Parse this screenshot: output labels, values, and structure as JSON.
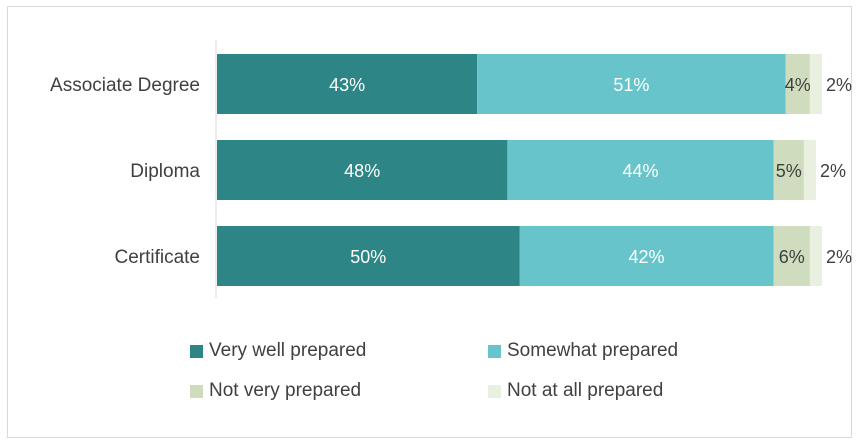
{
  "chart_data": {
    "type": "bar",
    "orientation": "horizontal",
    "stacked": true,
    "categories": [
      "Associate Degree",
      "Diploma",
      "Certificate"
    ],
    "series": [
      {
        "name": "Very well prepared",
        "values": [
          43,
          48,
          50
        ],
        "labels": [
          "43%",
          "48%",
          "50%"
        ],
        "color": "#2e8585"
      },
      {
        "name": "Somewhat prepared",
        "values": [
          51,
          44,
          42
        ],
        "labels": [
          "51%",
          "44%",
          "42%"
        ],
        "color": "#66c4ca"
      },
      {
        "name": "Not very prepared",
        "values": [
          4,
          5,
          6
        ],
        "labels": [
          "4%",
          "5%",
          "6%"
        ],
        "color": "#cfdcbd"
      },
      {
        "name": "Not at all prepared",
        "values": [
          2,
          2,
          2
        ],
        "labels": [
          "2%",
          "2%",
          "2%"
        ],
        "color": "#e9f0e0"
      }
    ],
    "title": "",
    "xlabel": "",
    "ylabel": "",
    "xlim": [
      0,
      100
    ],
    "grid": false,
    "legend_position": "bottom"
  }
}
